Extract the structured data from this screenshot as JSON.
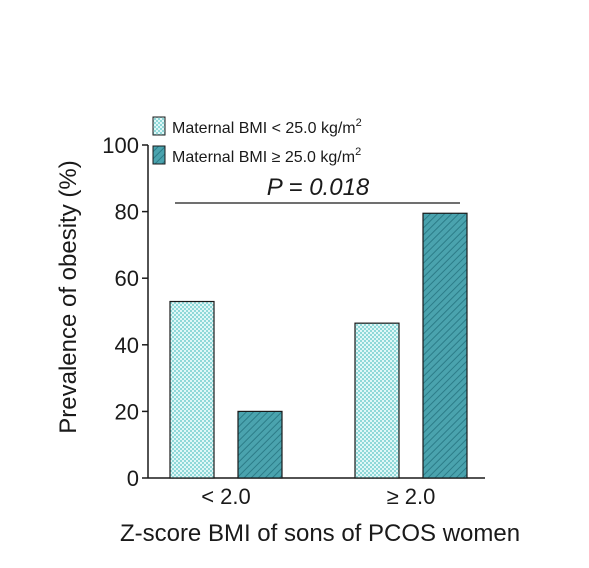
{
  "chart_data": {
    "type": "bar",
    "xlabel": "Z-score BMI of sons of PCOS women",
    "ylabel": "Prevalence of obesity (%)",
    "ylim": [
      0,
      100
    ],
    "yticks": [
      "0",
      "20",
      "40",
      "60",
      "80",
      "100"
    ],
    "categories": [
      "< 2.0",
      "≥ 2.0"
    ],
    "series": [
      {
        "name": "Maternal BMI < 25.0 kg/m",
        "superscript": "2",
        "color": "#b8ecec",
        "pattern": "checker",
        "values": [
          53,
          46.5
        ]
      },
      {
        "name": "Maternal BMI ≥ 25.0 kg/m",
        "superscript": "2",
        "color": "#3f9aa6",
        "pattern": "diagonal",
        "values": [
          20,
          79.5
        ]
      }
    ],
    "annotation": "P = 0.018",
    "legend_position": "top",
    "grid": false
  }
}
